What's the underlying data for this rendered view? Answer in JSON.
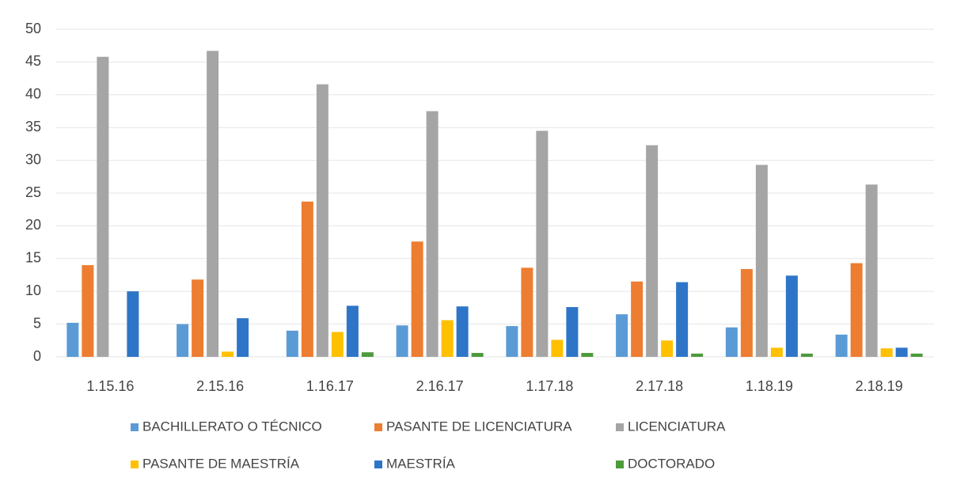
{
  "chart_data": {
    "type": "bar",
    "categories": [
      "1.15.16",
      "2.15.16",
      "1.16.17",
      "2.16.17",
      "1.17.18",
      "2.17.18",
      "1.18.19",
      "2.18.19"
    ],
    "series": [
      {
        "name": "BACHILLERATO O TÉCNICO",
        "color": "#5b9bd5",
        "values": [
          5.2,
          5,
          4,
          4.8,
          4.7,
          6.5,
          4.5,
          3.4
        ]
      },
      {
        "name": "PASANTE DE LICENCIATURA",
        "color": "#ed7d31",
        "values": [
          14,
          11.8,
          23.7,
          17.6,
          13.6,
          11.5,
          13.4,
          14.3
        ]
      },
      {
        "name": "LICENCIATURA",
        "color": "#a5a5a5",
        "values": [
          45.8,
          46.7,
          41.6,
          37.5,
          34.5,
          32.3,
          29.3,
          26.3
        ]
      },
      {
        "name": "PASANTE DE MAESTRÍA",
        "color": "#ffc000",
        "values": [
          0,
          0.8,
          3.8,
          5.6,
          2.6,
          2.5,
          1.4,
          1.3
        ]
      },
      {
        "name": "MAESTRÍA",
        "color": "#2e75c8",
        "values": [
          10,
          5.9,
          7.8,
          7.7,
          7.6,
          11.4,
          12.4,
          1.4
        ]
      },
      {
        "name": "DOCTORADO",
        "color": "#4e9a3c",
        "values": [
          0,
          0,
          0.7,
          0.6,
          0.6,
          0.5,
          0.5,
          0.5
        ]
      }
    ],
    "ylim": [
      0,
      50
    ],
    "yticks": [
      0,
      5,
      10,
      15,
      20,
      25,
      30,
      35,
      40,
      45,
      50
    ],
    "grid": true,
    "legend": "bottom"
  }
}
